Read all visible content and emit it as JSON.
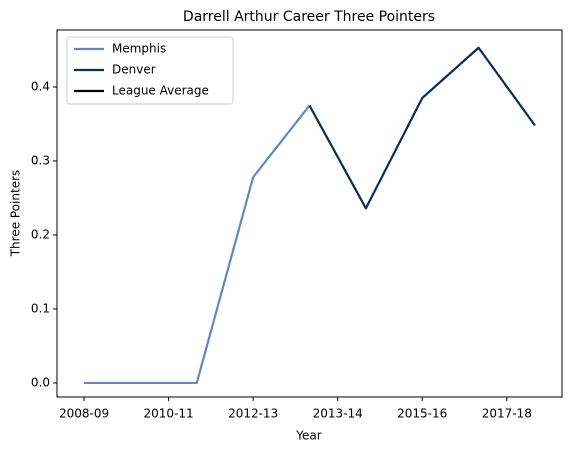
{
  "chart_data": {
    "type": "line",
    "title": "Darrell Arthur Career Three Pointers",
    "xlabel": "Year",
    "ylabel": "Three Pointers",
    "x": [
      0,
      1,
      2,
      3,
      4,
      5,
      6,
      7,
      8
    ],
    "xlim": [
      -0.48,
      8.48
    ],
    "xticks": [
      {
        "value": 0,
        "label": "2008-09"
      },
      {
        "value": 1.5,
        "label": "2010-11"
      },
      {
        "value": 3,
        "label": "2012-13"
      },
      {
        "value": 4.5,
        "label": "2013-14"
      },
      {
        "value": 6,
        "label": "2015-16"
      },
      {
        "value": 7.5,
        "label": "2017-18"
      }
    ],
    "ylim": [
      -0.019,
      0.477
    ],
    "yticks": [
      {
        "value": 0,
        "label": "0.0"
      },
      0.1,
      0.2,
      0.3,
      0.4
    ],
    "legend": "upper left",
    "series": [
      {
        "name": "Memphis",
        "color": "#6189b9",
        "values": [
          0,
          0,
          0,
          0.278,
          0.375,
          null,
          null,
          null,
          null
        ]
      },
      {
        "name": "Denver",
        "color": "#0c2c56",
        "values": [
          null,
          null,
          null,
          null,
          0.375,
          0.236,
          0.385,
          0.453,
          0.348
        ]
      },
      {
        "name": "League Average",
        "color": "#000000",
        "values": [
          null,
          null,
          null,
          null,
          null,
          null,
          null,
          null,
          null
        ]
      }
    ]
  }
}
